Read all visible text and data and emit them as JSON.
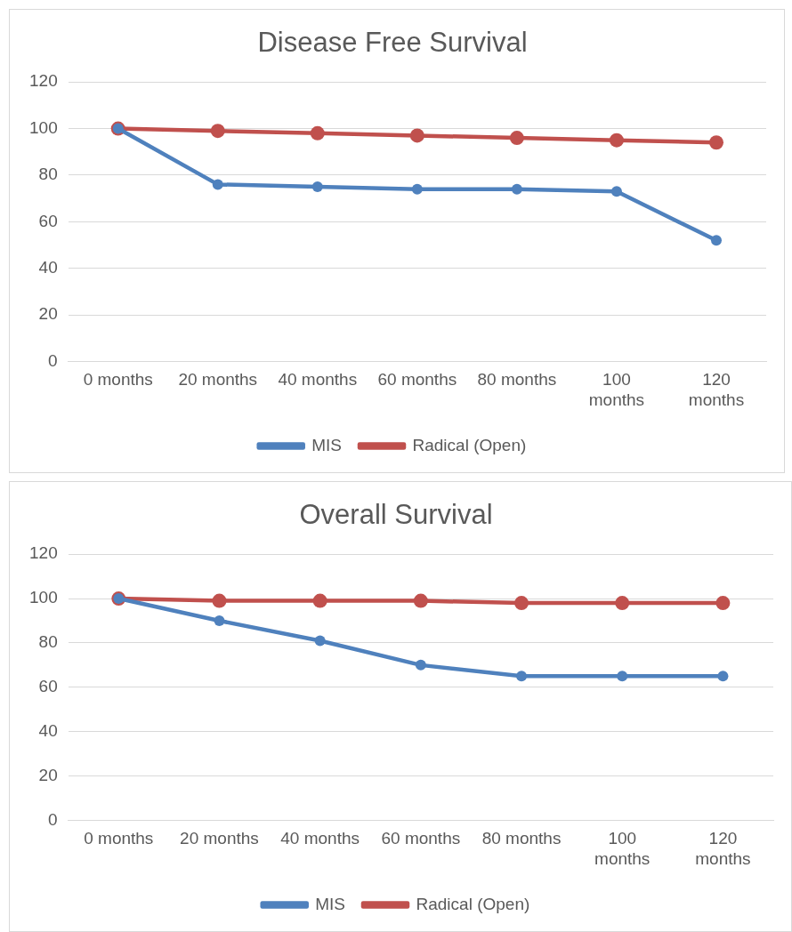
{
  "chart_data": [
    {
      "type": "line",
      "title": "Disease Free Survival",
      "categories": [
        "0 months",
        "20 months",
        "40 months",
        "60 months",
        "80 months",
        "100 months",
        "120 months"
      ],
      "series": [
        {
          "name": "MIS",
          "color": "#4f81bd",
          "values": [
            100,
            76,
            75,
            74,
            74,
            73,
            52
          ]
        },
        {
          "name": "Radical (Open)",
          "color": "#c0504d",
          "values": [
            100,
            99,
            98,
            97,
            96,
            95,
            94
          ]
        }
      ],
      "ylim": [
        0,
        120
      ],
      "yticks": [
        0,
        20,
        40,
        60,
        80,
        100,
        120
      ],
      "grid": "y",
      "legend": "bottom",
      "marker": "circle",
      "line_style": "solid"
    },
    {
      "type": "line",
      "title": "Overall Survival",
      "categories": [
        "0 months",
        "20 months",
        "40 months",
        "60 months",
        "80 months",
        "100 months",
        "120 months"
      ],
      "series": [
        {
          "name": "MIS",
          "color": "#4f81bd",
          "values": [
            100,
            90,
            81,
            70,
            65,
            65,
            65
          ]
        },
        {
          "name": "Radical (Open)",
          "color": "#c0504d",
          "values": [
            100,
            99,
            99,
            99,
            98,
            98,
            98
          ]
        }
      ],
      "ylim": [
        0,
        120
      ],
      "yticks": [
        0,
        20,
        40,
        60,
        80,
        100,
        120
      ],
      "grid": "y",
      "legend": "bottom",
      "marker": "circle",
      "line_style": "solid"
    }
  ]
}
